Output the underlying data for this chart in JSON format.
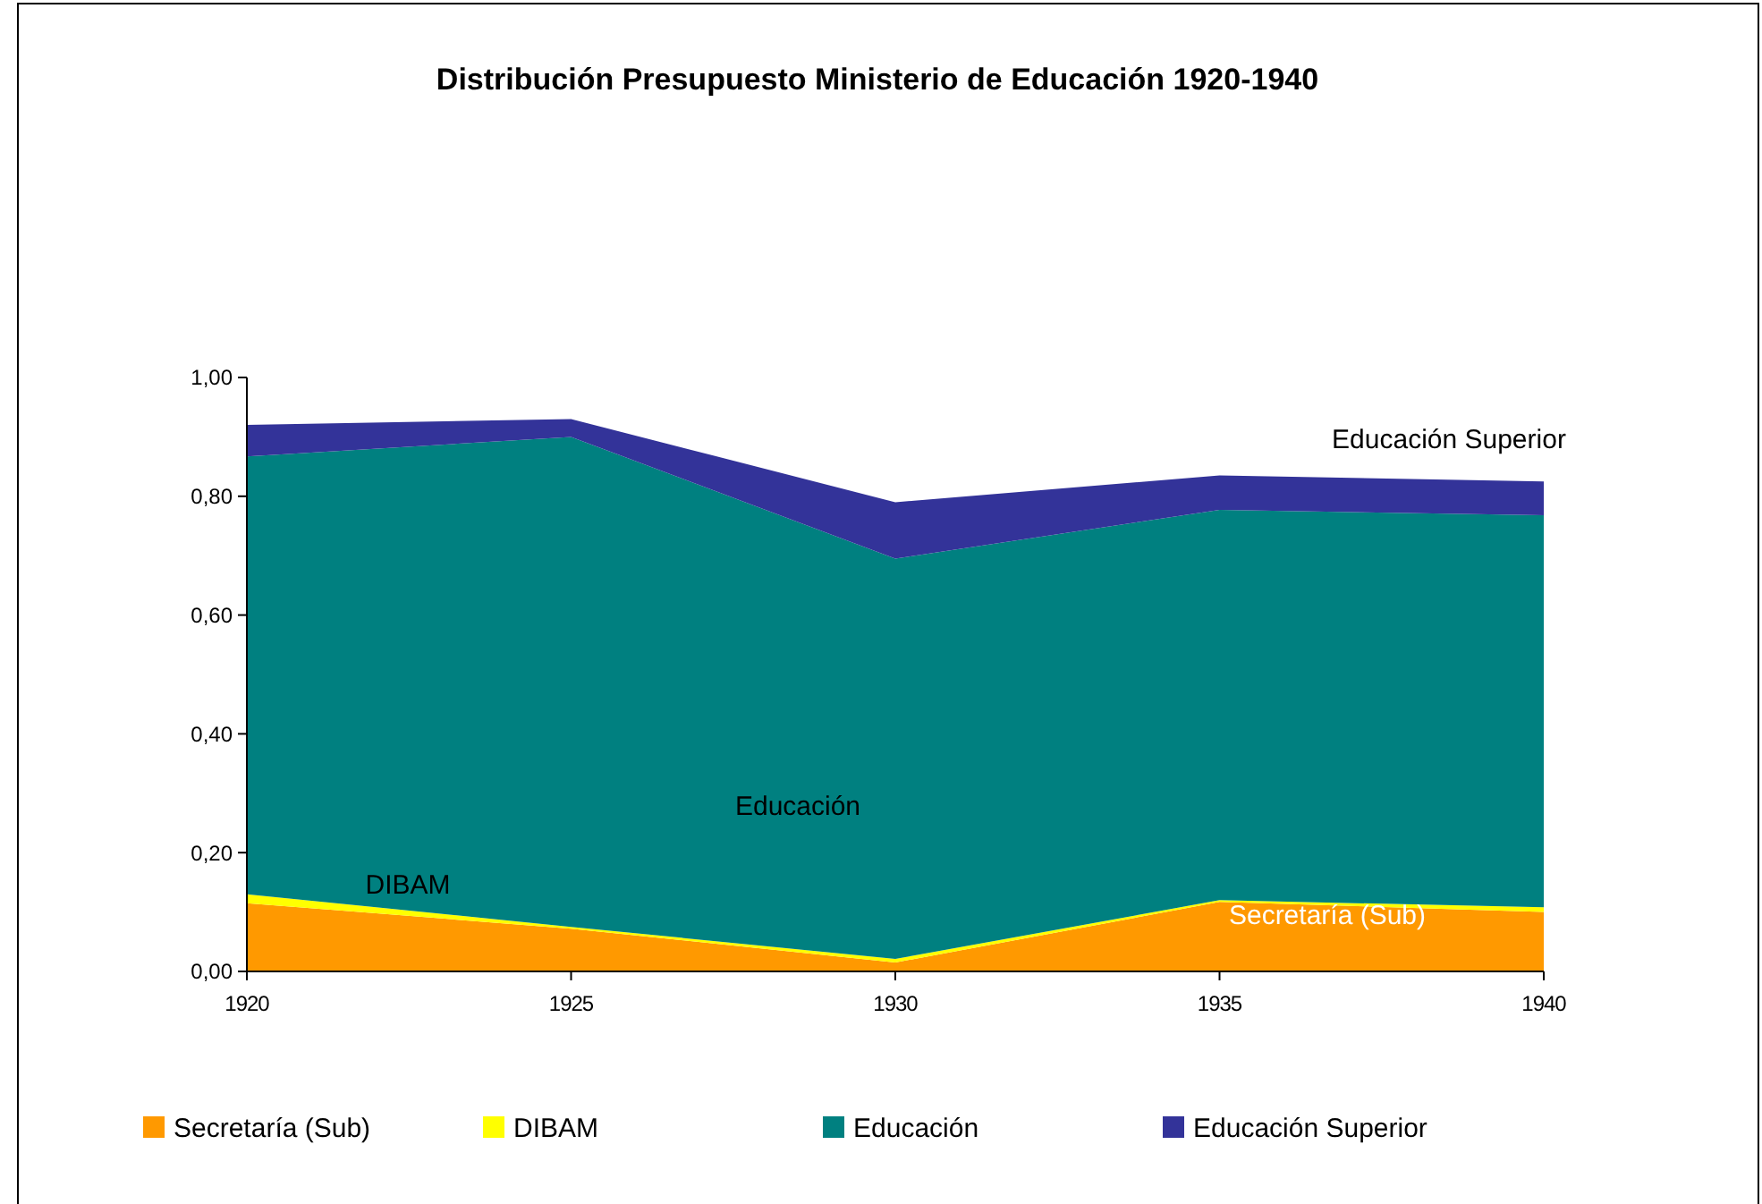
{
  "chart_data": {
    "type": "area",
    "stacked": true,
    "title": "Distribución Presupuesto Ministerio de Educación 1920-1940",
    "x": [
      1920,
      1925,
      1930,
      1935,
      1940
    ],
    "series": [
      {
        "name": "Secretaría (Sub)",
        "color": "#ff9900",
        "values": [
          0.115,
          0.072,
          0.015,
          0.117,
          0.1
        ]
      },
      {
        "name": "DIBAM",
        "color": "#ffff00",
        "values": [
          0.015,
          0.003,
          0.006,
          0.003,
          0.008
        ]
      },
      {
        "name": "Educación",
        "color": "#008080",
        "values": [
          0.737,
          0.825,
          0.674,
          0.657,
          0.66
        ]
      },
      {
        "name": "Educación Superior",
        "color": "#333399",
        "values": [
          0.053,
          0.03,
          0.095,
          0.058,
          0.057
        ]
      }
    ],
    "xlim": [
      1920,
      1940
    ],
    "xticks": [
      1920,
      1925,
      1930,
      1935,
      1940
    ],
    "ylim": [
      0,
      1
    ],
    "yticks": [
      {
        "value": 0,
        "label": "0,00"
      },
      {
        "value": 0.2,
        "label": "0,20"
      },
      {
        "value": 0.4,
        "label": "0,40"
      },
      {
        "value": 0.6,
        "label": "0,60"
      },
      {
        "value": 0.8,
        "label": "0,80"
      },
      {
        "value": 1,
        "label": "1,00"
      }
    ],
    "annotations": [
      "DIBAM",
      "Educación",
      "Educación Superior",
      "Secretaría (Sub)"
    ],
    "legend": "bottom",
    "grid": false
  }
}
